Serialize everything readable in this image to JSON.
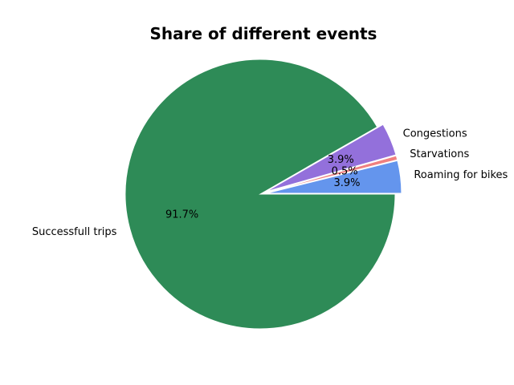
{
  "chart_data": {
    "type": "pie",
    "title": "Share of different events",
    "slices": [
      {
        "label": "Roaming for bikes",
        "value": 3.9,
        "pct_label": "3.9%",
        "color": "#6495ED",
        "exploded": true
      },
      {
        "label": "Starvations",
        "value": 0.5,
        "pct_label": "0.5%",
        "color": "#F08080",
        "exploded": true
      },
      {
        "label": "Congestions",
        "value": 3.9,
        "pct_label": "3.9%",
        "color": "#9370DB",
        "exploded": true
      },
      {
        "label": "Successfull trips",
        "value": 91.7,
        "pct_label": "91.7%",
        "color": "#2E8B57",
        "exploded": false
      }
    ],
    "start_angle_deg": 0,
    "direction": "counterclockwise"
  }
}
